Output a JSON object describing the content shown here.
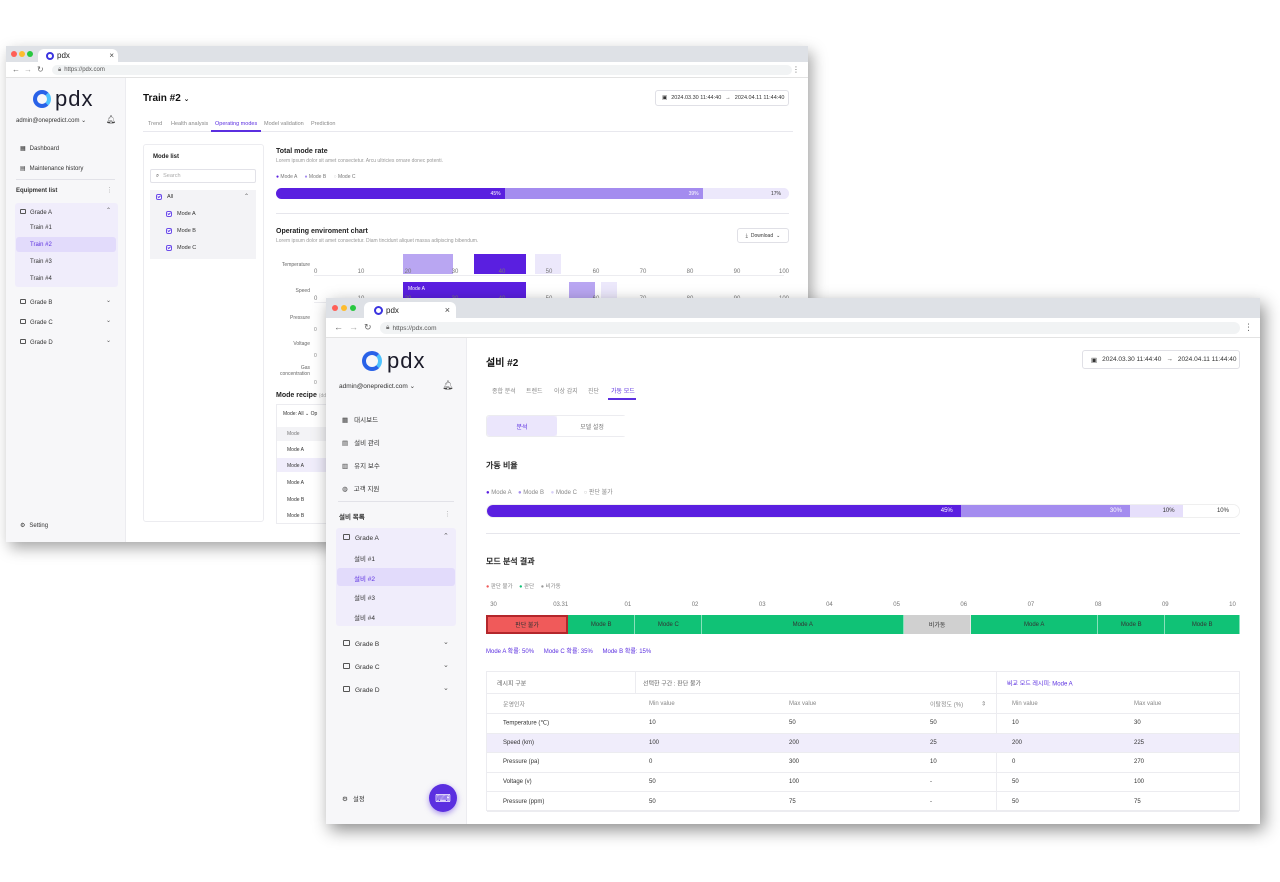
{
  "colors": {
    "accent": "#5b2fe0",
    "mode_a": "#5a1fe0",
    "mode_b": "#a48cef",
    "mode_c": "#ece8fb",
    "green": "#10c276",
    "red": "#f05a5a",
    "grey": "#d0d0d0"
  },
  "window1": {
    "tab_title": "pdx",
    "url": "https://pdx.com",
    "logo": "pdx",
    "user": "admin@onepredict.com",
    "nav": [
      {
        "label": "Dashboard",
        "icon": "dashboard-icon"
      },
      {
        "label": "Maintenance history",
        "icon": "document-icon"
      }
    ],
    "equipment_list_label": "Equipment list",
    "grade_a": "Grade A",
    "trains": [
      "Train #1",
      "Train #2",
      "Train #3",
      "Train #4"
    ],
    "other_grades": [
      "Grade B",
      "Grade C",
      "Grade D"
    ],
    "setting": "Setting",
    "page_title": "Train #2",
    "date_from": "2024.03.30  11:44:40",
    "date_to": "2024.04.11  11:44:40",
    "tabs": [
      "Trend",
      "Health analysis",
      "Operating modes",
      "Model validation",
      "Prediction"
    ],
    "mode_list": {
      "title": "Mode list",
      "search_placeholder": "Search",
      "all": "All",
      "items": [
        "Mode A",
        "Mode B",
        "Mode C"
      ]
    },
    "total": {
      "title": "Total mode rate",
      "desc": "Lorem ipsum dolor sit amet consectetur. Arcu ultricies ornare donec potenti.",
      "legend": [
        "Mode A",
        "Mode B",
        "Mode C"
      ],
      "values": [
        45,
        39,
        17
      ],
      "labels": [
        "45%",
        "39%",
        "17%"
      ]
    },
    "env": {
      "title": "Operating enviroment chart",
      "desc": "Lorem ipsum dolor sit amet consectetur. Diam tincidunt aliquet massa adipiscing bibendum.",
      "download": "Download",
      "rows": [
        "Temperature",
        "Speed",
        "Pressure",
        "Voltage",
        "Gas concentration"
      ],
      "ticks": [
        "0",
        "10",
        "20",
        "30",
        "40",
        "50",
        "60",
        "70",
        "80",
        "90",
        "100"
      ],
      "mode_tag": "Mode A"
    },
    "recipe": {
      "title": "Mode recipe",
      "note": "(dd f",
      "filter": "Mode: All",
      "col_partial": "Op",
      "col_mode": "Mode",
      "rows": [
        "Mode A",
        "Mode A",
        "Mode A",
        "Mode B",
        "Mode B"
      ]
    }
  },
  "window2": {
    "tab_title": "pdx",
    "url": "https://pdx.com",
    "logo": "pdx",
    "user": "admin@onepredict.com",
    "nav": [
      {
        "label": "대시보드",
        "icon": "dashboard-icon"
      },
      {
        "label": "설비 관리",
        "icon": "document-icon"
      },
      {
        "label": "유지 보수",
        "icon": "clipboard-icon"
      },
      {
        "label": "고객 지원",
        "icon": "globe-icon"
      }
    ],
    "equipment_list_label": "설비 목록",
    "grade_a": "Grade A",
    "machines": [
      "설비 #1",
      "설비 #2",
      "설비 #3",
      "설비 #4"
    ],
    "other_grades": [
      "Grade B",
      "Grade C",
      "Grade D"
    ],
    "setting": "설정",
    "page_title": "설비 #2",
    "date_from": "2024.03.30  11:44:40",
    "date_to": "2024.04.11  11:44:40",
    "tabs": [
      "종합 분석",
      "트렌드",
      "이상 감지",
      "진단",
      "가동 모드"
    ],
    "seg_buttons": [
      "분석",
      "모델 설정"
    ],
    "ratio": {
      "title": "가동 비율",
      "legend": [
        "Mode A",
        "Mode B",
        "Mode C",
        "판단 불가"
      ],
      "values": [
        45,
        30,
        10,
        10
      ],
      "labels": [
        "45%",
        "30%",
        "10%",
        "10%"
      ]
    },
    "result": {
      "title": "모드 분석 결과",
      "legend": [
        "판단 불가",
        "판단",
        "비가동"
      ],
      "ticks": [
        "30",
        "03.31",
        "01",
        "02",
        "03",
        "04",
        "05",
        "06",
        "07",
        "08",
        "09",
        "10"
      ],
      "segments": [
        {
          "label": "판단 불가",
          "kind": "red",
          "w": 11
        },
        {
          "label": "Mode B",
          "kind": "green",
          "w": 9
        },
        {
          "label": "Mode C",
          "kind": "green",
          "w": 9
        },
        {
          "label": "Mode A",
          "kind": "green",
          "w": 27
        },
        {
          "label": "비가동",
          "kind": "grey",
          "w": 9
        },
        {
          "label": "Mode A",
          "kind": "green",
          "w": 17
        },
        {
          "label": "Mode B",
          "kind": "green",
          "w": 9
        },
        {
          "label": "Mode B",
          "kind": "green",
          "w": 10
        }
      ],
      "probs": [
        "Mode A 확률: 50%",
        "Mode C 확률: 35%",
        "Mode B 확률: 15%"
      ]
    },
    "table": {
      "recipe_section": "레시피 구분",
      "selected": "선택한 구간 : 판단 불가",
      "compare": "비교 모드 레시피: Mode A",
      "cols": [
        "운영인자",
        "Min value",
        "Max value",
        "이탈정도 (%)",
        "Min value",
        "Max value"
      ],
      "rows": [
        [
          "Temperature (℃)",
          "10",
          "50",
          "50",
          "10",
          "30"
        ],
        [
          "Speed (km)",
          "100",
          "200",
          "25",
          "200",
          "225"
        ],
        [
          "Pressure (pa)",
          "0",
          "300",
          "10",
          "0",
          "270"
        ],
        [
          "Voltage (v)",
          "50",
          "100",
          "-",
          "50",
          "100"
        ],
        [
          "Pressure (ppm)",
          "50",
          "75",
          "-",
          "50",
          "75"
        ]
      ]
    }
  }
}
